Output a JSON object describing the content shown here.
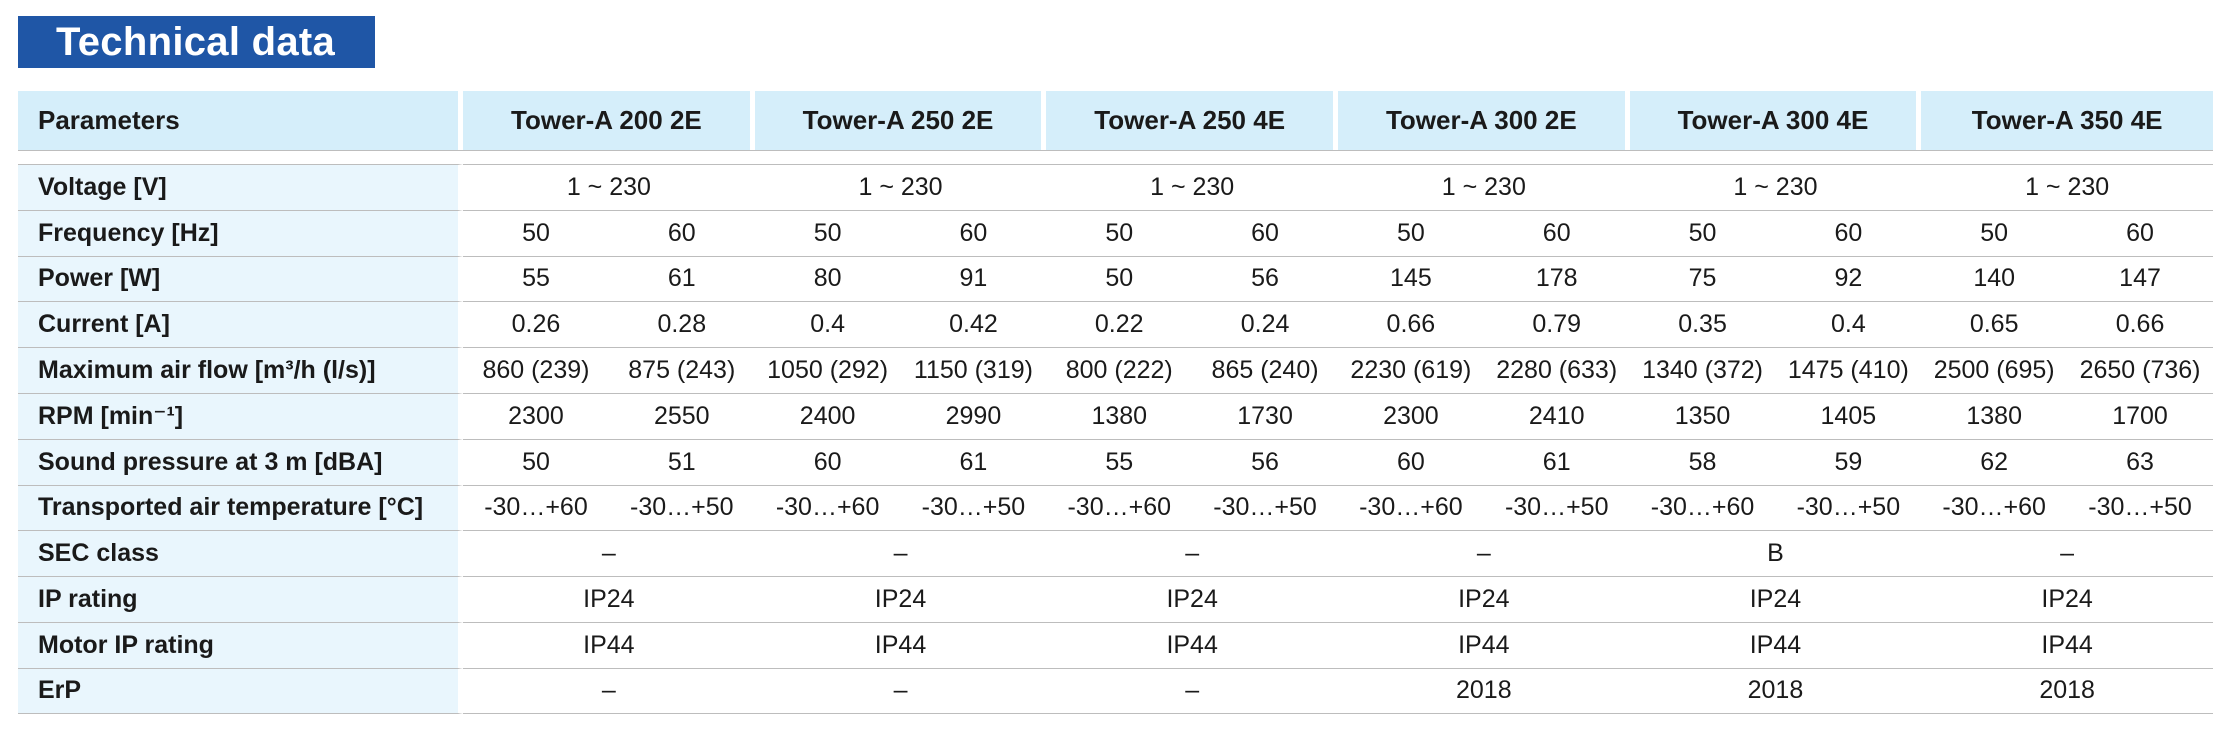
{
  "title": "Technical data",
  "header": {
    "parameters": "Parameters",
    "models": [
      "Tower-A 200 2E",
      "Tower-A 250 2E",
      "Tower-A 250 4E",
      "Tower-A 300 2E",
      "Tower-A 300 4E",
      "Tower-A 350 4E"
    ]
  },
  "rows": {
    "voltage": {
      "label": "Voltage [V]",
      "values": [
        "1 ~ 230",
        "1 ~ 230",
        "1 ~ 230",
        "1 ~ 230",
        "1 ~ 230",
        "1 ~ 230"
      ]
    },
    "frequency": {
      "label": "Frequency [Hz]",
      "values": [
        "50",
        "60",
        "50",
        "60",
        "50",
        "60",
        "50",
        "60",
        "50",
        "60",
        "50",
        "60"
      ]
    },
    "power": {
      "label": "Power [W]",
      "values": [
        "55",
        "61",
        "80",
        "91",
        "50",
        "56",
        "145",
        "178",
        "75",
        "92",
        "140",
        "147"
      ]
    },
    "current": {
      "label": "Current [A]",
      "values": [
        "0.26",
        "0.28",
        "0.4",
        "0.42",
        "0.22",
        "0.24",
        "0.66",
        "0.79",
        "0.35",
        "0.4",
        "0.65",
        "0.66"
      ]
    },
    "air_flow": {
      "label": "Maximum air flow [m³/h (l/s)]",
      "values": [
        "860 (239)",
        "875 (243)",
        "1050 (292)",
        "1150 (319)",
        "800 (222)",
        "865 (240)",
        "2230 (619)",
        "2280 (633)",
        "1340 (372)",
        "1475 (410)",
        "2500 (695)",
        "2650 (736)"
      ]
    },
    "rpm": {
      "label": "RPM [min⁻¹]",
      "values": [
        "2300",
        "2550",
        "2400",
        "2990",
        "1380",
        "1730",
        "2300",
        "2410",
        "1350",
        "1405",
        "1380",
        "1700"
      ]
    },
    "sound": {
      "label": "Sound pressure at 3 m [dBA]",
      "values": [
        "50",
        "51",
        "60",
        "61",
        "55",
        "56",
        "60",
        "61",
        "58",
        "59",
        "62",
        "63"
      ]
    },
    "temperature": {
      "label": "Transported air temperature [°C]",
      "values": [
        "-30…+60",
        "-30…+50",
        "-30…+60",
        "-30…+50",
        "-30…+60",
        "-30…+50",
        "-30…+60",
        "-30…+50",
        "-30…+60",
        "-30…+50",
        "-30…+60",
        "-30…+50"
      ]
    },
    "sec_class": {
      "label": "SEC class",
      "values": [
        "–",
        "–",
        "–",
        "–",
        "B",
        "–"
      ]
    },
    "ip_rating": {
      "label": "IP rating",
      "values": [
        "IP24",
        "IP24",
        "IP24",
        "IP24",
        "IP24",
        "IP24"
      ]
    },
    "motor_ip": {
      "label": "Motor IP rating",
      "values": [
        "IP44",
        "IP44",
        "IP44",
        "IP44",
        "IP44",
        "IP44"
      ]
    },
    "erp": {
      "label": "ErP",
      "values": [
        "–",
        "–",
        "–",
        "2018",
        "2018",
        "2018"
      ]
    }
  }
}
